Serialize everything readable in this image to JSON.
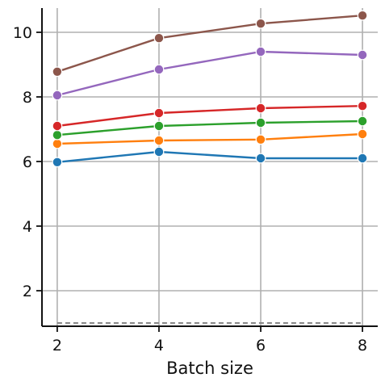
{
  "chart_data": {
    "type": "line",
    "title": "",
    "xlabel": "Batch size",
    "ylabel": "",
    "x": [
      2,
      4,
      6,
      8
    ],
    "xlim": [
      1.7,
      8.3
    ],
    "ylim": [
      0.9,
      10.75
    ],
    "xticks": [
      2,
      4,
      6,
      8
    ],
    "yticks": [
      2,
      4,
      6,
      8,
      10
    ],
    "grid": true,
    "legend": "none",
    "series": [
      {
        "color": "#1f77b4",
        "values": [
          5.98,
          6.3,
          6.1,
          6.1
        ]
      },
      {
        "color": "#ff7f0e",
        "values": [
          6.55,
          6.65,
          6.68,
          6.85
        ]
      },
      {
        "color": "#2ca02c",
        "values": [
          6.82,
          7.1,
          7.2,
          7.25
        ]
      },
      {
        "color": "#d62728",
        "values": [
          7.1,
          7.5,
          7.65,
          7.72
        ]
      },
      {
        "color": "#9467bd",
        "values": [
          8.05,
          8.85,
          9.4,
          9.3
        ]
      },
      {
        "color": "#8c564b",
        "values": [
          8.78,
          9.82,
          10.27,
          10.52
        ]
      }
    ],
    "reference_line": {
      "y": 1.0,
      "color": "#888888",
      "style": "dashed"
    }
  }
}
